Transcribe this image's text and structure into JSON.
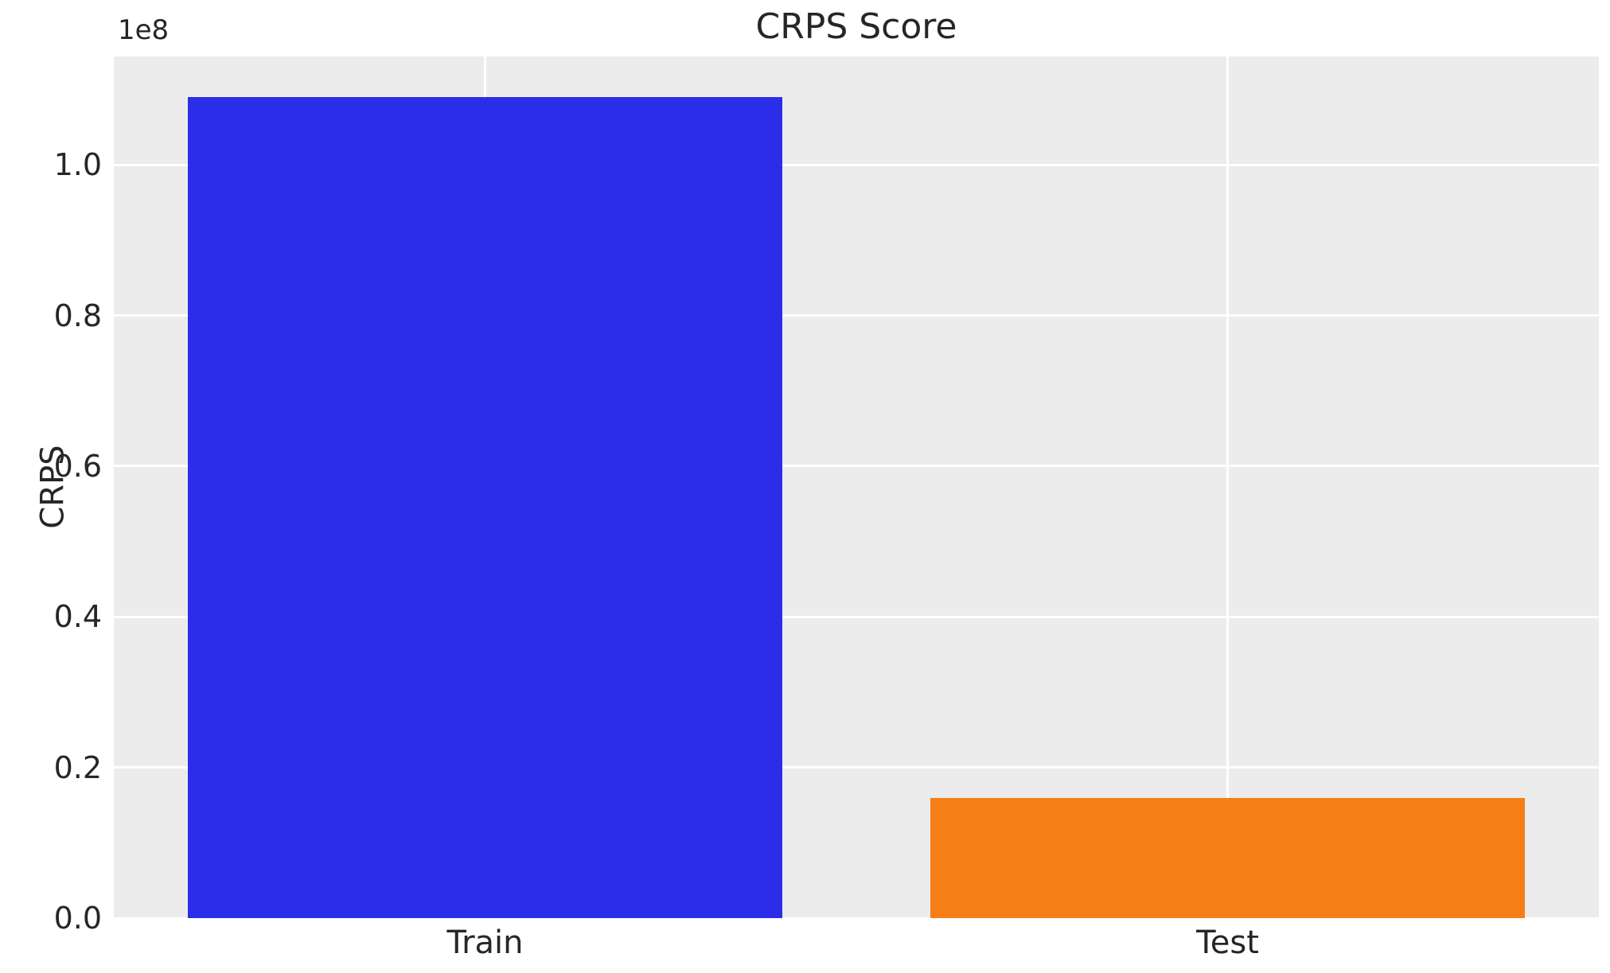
{
  "chart_data": {
    "type": "bar",
    "title": "CRPS Score",
    "ylabel": "CRPS",
    "xlabel": "",
    "categories": [
      "Train",
      "Test"
    ],
    "values": [
      109000000,
      16000000
    ],
    "bar_colors": [
      "#2b2de9",
      "#f67e17"
    ],
    "offset_text": "1e8",
    "ylim": [
      0,
      114400000
    ],
    "yticks": [
      0,
      20000000,
      40000000,
      60000000,
      80000000,
      100000000
    ],
    "ytick_labels": [
      "0.0",
      "0.2",
      "0.4",
      "0.6",
      "0.8",
      "1.0"
    ],
    "xlim": [
      -0.5,
      1.5
    ],
    "bar_width_units": 0.8,
    "grid": true,
    "legend": false,
    "colors": {
      "plot_bg": "#ececec",
      "grid": "#ffffff",
      "text": "#262626",
      "figure_bg": "#ffffff"
    }
  }
}
